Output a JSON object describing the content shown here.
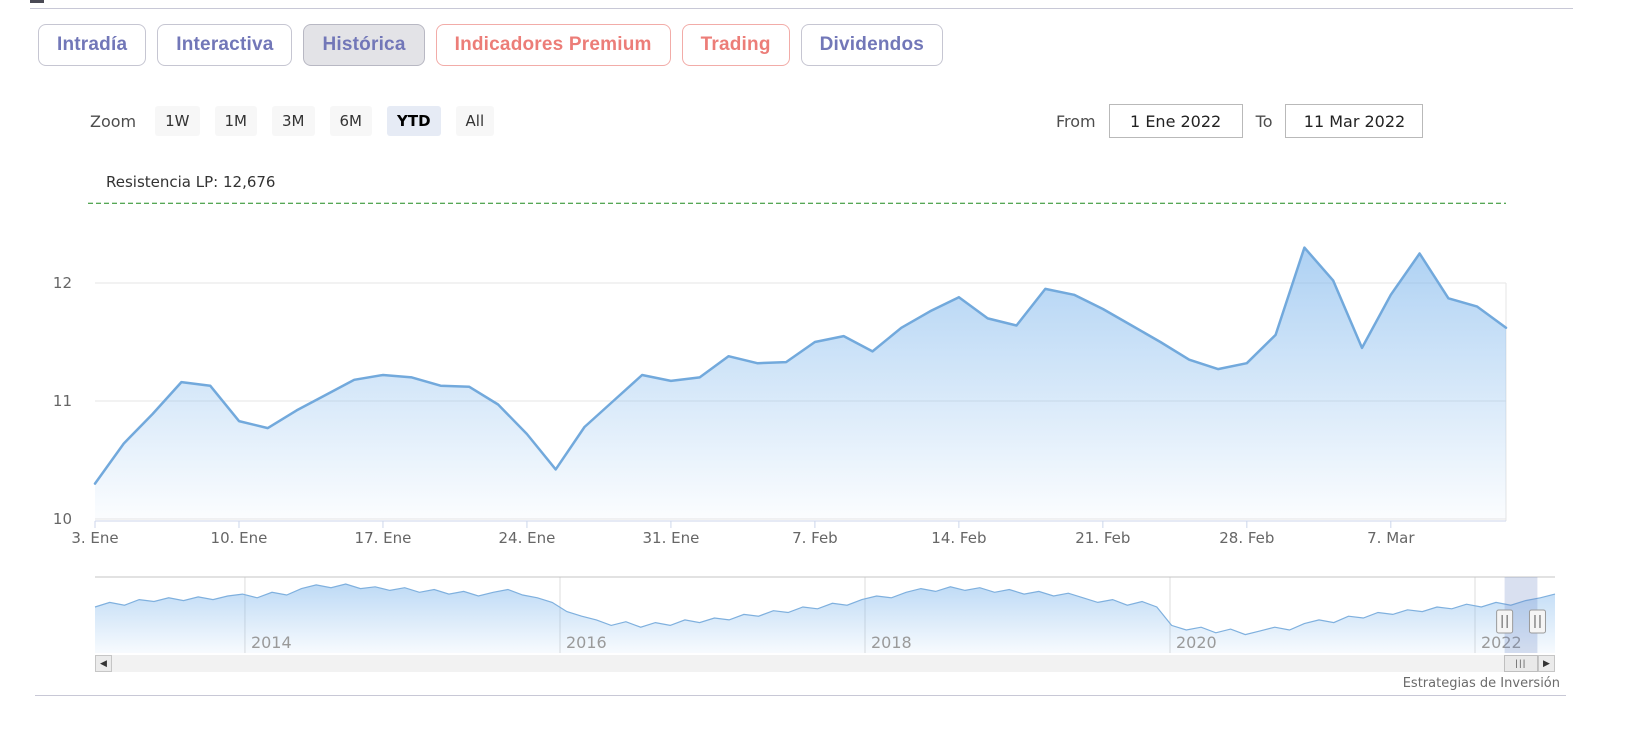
{
  "tabs": [
    {
      "label": "Intradía",
      "variant": "purple",
      "active": false
    },
    {
      "label": "Interactiva",
      "variant": "purple",
      "active": false
    },
    {
      "label": "Histórica",
      "variant": "purple",
      "active": true
    },
    {
      "label": "Indicadores Premium",
      "variant": "red",
      "active": false
    },
    {
      "label": "Trading",
      "variant": "red",
      "active": false
    },
    {
      "label": "Dividendos",
      "variant": "purple",
      "active": false
    }
  ],
  "toolbar": {
    "zoom_label": "Zoom",
    "ranges": [
      "1W",
      "1M",
      "3M",
      "6M",
      "YTD",
      "All"
    ],
    "selected_range": "YTD"
  },
  "date_range": {
    "from_label": "From",
    "from_value": "1 Ene 2022",
    "to_label": "To",
    "to_value": "11 Mar 2022"
  },
  "chart_data": [
    {
      "type": "area",
      "title": "",
      "xlabel": "",
      "ylabel": "",
      "grid": true,
      "legend": false,
      "ylim": [
        9.7,
        12.8
      ],
      "yticks": [
        10,
        11,
        12
      ],
      "xtick_labels": [
        "3. Ene",
        "10. Ene",
        "17. Ene",
        "24. Ene",
        "31. Ene",
        "7. Feb",
        "14. Feb",
        "21. Feb",
        "28. Feb",
        "7. Mar"
      ],
      "xtick_indices": [
        0,
        5,
        10,
        15,
        20,
        25,
        30,
        35,
        40,
        45
      ],
      "dates": [
        "3 Ene",
        "4 Ene",
        "5 Ene",
        "6 Ene",
        "7 Ene",
        "10 Ene",
        "11 Ene",
        "12 Ene",
        "13 Ene",
        "14 Ene",
        "17 Ene",
        "18 Ene",
        "19 Ene",
        "20 Ene",
        "21 Ene",
        "24 Ene",
        "25 Ene",
        "26 Ene",
        "27 Ene",
        "28 Ene",
        "31 Ene",
        "1 Feb",
        "2 Feb",
        "3 Feb",
        "4 Feb",
        "7 Feb",
        "8 Feb",
        "9 Feb",
        "10 Feb",
        "11 Feb",
        "14 Feb",
        "15 Feb",
        "16 Feb",
        "17 Feb",
        "18 Feb",
        "21 Feb",
        "22 Feb",
        "23 Feb",
        "24 Feb",
        "25 Feb",
        "28 Feb",
        "1 Mar",
        "2 Mar",
        "3 Mar",
        "4 Mar",
        "7 Mar",
        "8 Mar",
        "9 Mar",
        "10 Mar",
        "11 Mar"
      ],
      "values": [
        10.3,
        10.64,
        10.89,
        11.16,
        11.13,
        10.83,
        10.77,
        10.92,
        11.05,
        11.18,
        11.22,
        11.2,
        11.13,
        11.12,
        10.97,
        10.72,
        10.42,
        10.78,
        11.0,
        11.22,
        11.17,
        11.2,
        11.38,
        11.32,
        11.33,
        11.5,
        11.55,
        11.42,
        11.62,
        11.76,
        11.88,
        11.7,
        11.64,
        11.95,
        11.9,
        11.78,
        11.64,
        11.5,
        11.35,
        11.27,
        11.32,
        11.56,
        12.3,
        12.02,
        11.45,
        11.9,
        12.25,
        11.87,
        11.8,
        11.62
      ],
      "plotline": {
        "label": "Resistencia LP: 12,676",
        "value": 12.676,
        "color": "#1f8a1f",
        "style": "dashed"
      },
      "line_color": "#72a9dc",
      "area_color": "#7cb5ec"
    },
    {
      "type": "area",
      "role": "navigator",
      "values": [
        0.5,
        0.55,
        0.52,
        0.58,
        0.56,
        0.6,
        0.57,
        0.61,
        0.58,
        0.62,
        0.64,
        0.6,
        0.66,
        0.63,
        0.7,
        0.74,
        0.71,
        0.75,
        0.7,
        0.72,
        0.68,
        0.71,
        0.66,
        0.69,
        0.64,
        0.67,
        0.62,
        0.66,
        0.69,
        0.63,
        0.6,
        0.55,
        0.45,
        0.4,
        0.36,
        0.3,
        0.34,
        0.28,
        0.33,
        0.3,
        0.36,
        0.33,
        0.38,
        0.36,
        0.42,
        0.4,
        0.46,
        0.44,
        0.5,
        0.48,
        0.54,
        0.52,
        0.58,
        0.62,
        0.6,
        0.66,
        0.7,
        0.67,
        0.72,
        0.68,
        0.71,
        0.66,
        0.69,
        0.64,
        0.67,
        0.62,
        0.65,
        0.6,
        0.55,
        0.58,
        0.52,
        0.56,
        0.5,
        0.3,
        0.25,
        0.28,
        0.22,
        0.26,
        0.2,
        0.24,
        0.28,
        0.25,
        0.32,
        0.36,
        0.33,
        0.4,
        0.38,
        0.44,
        0.42,
        0.47,
        0.45,
        0.5,
        0.48,
        0.53,
        0.5,
        0.55,
        0.52,
        0.57,
        0.6,
        0.64
      ],
      "year_ticks": [
        {
          "t": 0.1027,
          "label": "2014"
        },
        {
          "t": 0.3185,
          "label": "2016"
        },
        {
          "t": 0.5274,
          "label": "2018"
        },
        {
          "t": 0.7363,
          "label": "2020"
        },
        {
          "t": 0.9452,
          "label": "2022"
        }
      ],
      "selection": {
        "from_t": 0.9655,
        "to_t": 0.988
      },
      "line_color": "#7fb0de",
      "mask_color": "rgba(102,133,194,0.25)"
    }
  ],
  "scrollbar": {
    "left_arrow_icon": "◀",
    "right_arrow_icon": "▶",
    "grip_icon": "|||"
  },
  "attribution": "Estrategias de Inversión",
  "colors": {
    "accent_purple": "#7277b8",
    "accent_red": "#ec7d78",
    "selected_range_bg": "#e6ebf5",
    "grid": "#e6e6e6",
    "axis": "#ccd6eb",
    "resistance_green": "#1f8a1f"
  }
}
